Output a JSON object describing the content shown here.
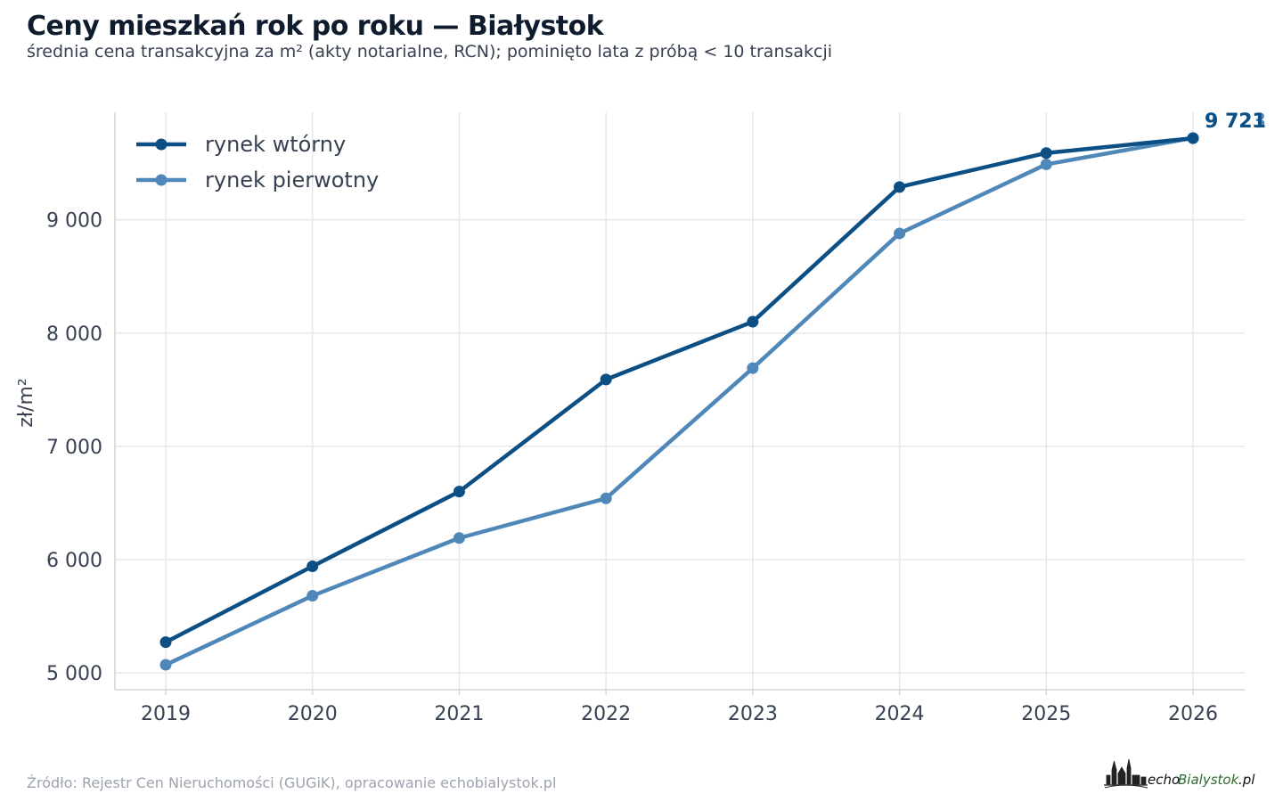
{
  "header": {
    "title": "Ceny mieszkań rok po roku — Białystok",
    "subtitle": "średnia cena transakcyjna za m² (akty notarialne, RCN); pominięto lata z próbą < 10 transakcji"
  },
  "footer": {
    "source": "Źródło: Rejestr Cen Nieruchomości (GUGiK), opracowanie echobialystok.pl",
    "logo_text_1": "echo",
    "logo_text_2": "Bialystok",
    "logo_text_3": ".pl"
  },
  "chart_data": {
    "type": "line",
    "title": "Ceny mieszkań rok po roku — Białystok",
    "subtitle": "średnia cena transakcyjna za m² (akty notarialne, RCN); pominięto lata z próbą < 10 transakcji",
    "xlabel": "",
    "ylabel": "zł/m²",
    "x": [
      2019,
      2020,
      2021,
      2022,
      2023,
      2024,
      2025,
      2026
    ],
    "x_tick_labels": [
      "2019",
      "2020",
      "2021",
      "2022",
      "2023",
      "2024",
      "2025",
      "2026"
    ],
    "ylim": [
      4850,
      9950
    ],
    "y_ticks": [
      5000,
      6000,
      7000,
      8000,
      9000
    ],
    "y_tick_labels": [
      "5 000",
      "6 000",
      "7 000",
      "8 000",
      "9 000"
    ],
    "grid": true,
    "legend_position": "top-left",
    "series": [
      {
        "name": "rynek wtórny",
        "color": "#0b4f84",
        "values": [
          5270,
          5940,
          6600,
          7590,
          8100,
          9290,
          9590,
          9721
        ],
        "end_label": "9 721"
      },
      {
        "name": "rynek pierwotny",
        "color": "#4f88b8",
        "values": [
          5070,
          5680,
          6190,
          6540,
          7690,
          8880,
          9490,
          9723
        ],
        "end_label": "9 723"
      }
    ]
  }
}
